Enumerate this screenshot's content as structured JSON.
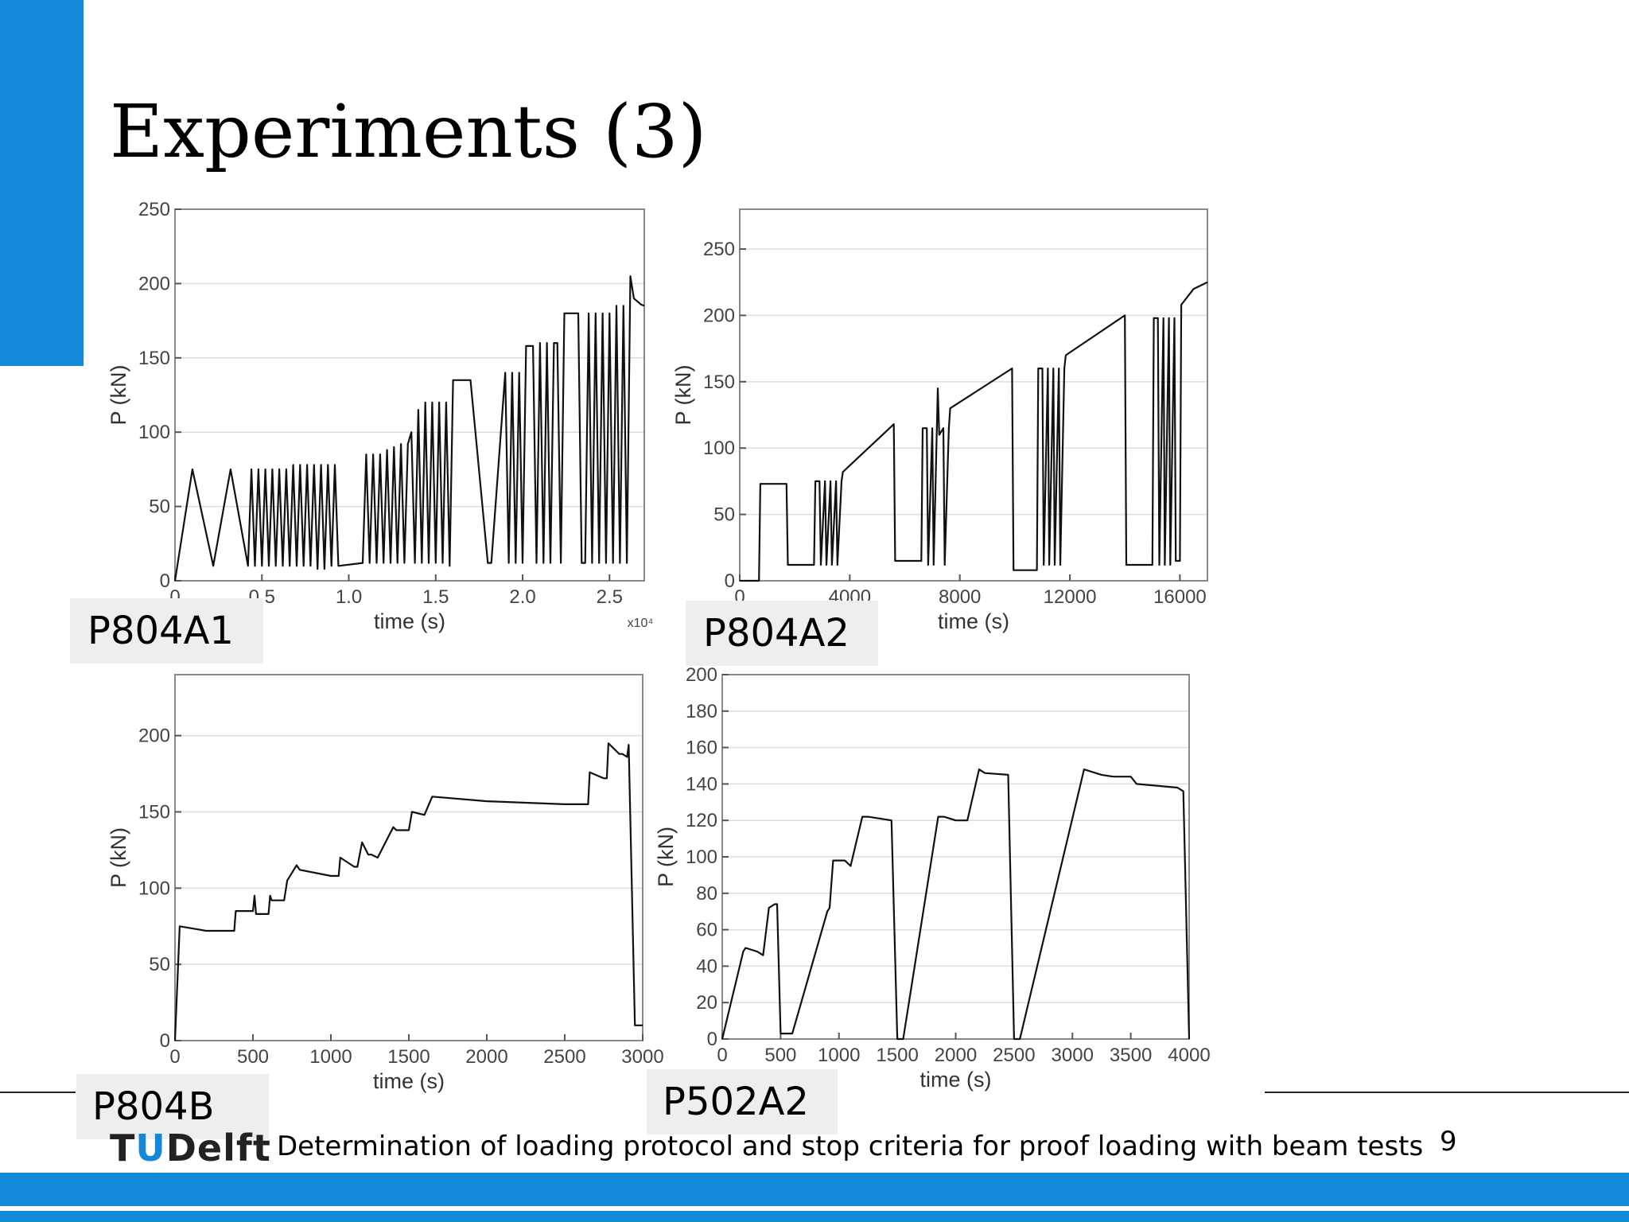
{
  "slide": {
    "title": "Experiments (3)",
    "footer_text": "Determination of loading protocol and stop criteria for proof loading with beam tests",
    "page_number": "9",
    "logo_text_prefix": "T",
    "logo_text_u": "U",
    "logo_text_suffix": "Delft",
    "colors": {
      "accent": "#1289d8",
      "plot_line": "#111111",
      "grid": "#dddddd"
    }
  },
  "chart_data": [
    {
      "type": "line",
      "label": "P804A1",
      "xlabel": "time (s)",
      "ylabel": "P (kN)",
      "x_multiplier_label": "x10⁴",
      "xlim": [
        0,
        2.7
      ],
      "ylim": [
        0,
        250
      ],
      "xticks": [
        0,
        0.5,
        1.0,
        1.5,
        2.0,
        2.5
      ],
      "xtick_labels": [
        "0",
        "0.5",
        "1.0",
        "1.5",
        "2.0",
        "2.5"
      ],
      "yticks": [
        0,
        50,
        100,
        150,
        200,
        250
      ],
      "grid": true,
      "series": [
        {
          "x": [
            0,
            0.1,
            0.22,
            0.32,
            0.42,
            0.44,
            0.46,
            0.48,
            0.5,
            0.52,
            0.54,
            0.56,
            0.58,
            0.6,
            0.62,
            0.64,
            0.66,
            0.68,
            0.7,
            0.72,
            0.74,
            0.76,
            0.78,
            0.8,
            0.82,
            0.84,
            0.86,
            0.88,
            0.9,
            0.92,
            0.94,
            1.08,
            1.1,
            1.12,
            1.14,
            1.16,
            1.18,
            1.2,
            1.22,
            1.24,
            1.26,
            1.28,
            1.3,
            1.32,
            1.34,
            1.36,
            1.38,
            1.4,
            1.42,
            1.44,
            1.46,
            1.48,
            1.5,
            1.52,
            1.54,
            1.56,
            1.58,
            1.6,
            1.62,
            1.64,
            1.66,
            1.7,
            1.8,
            1.82,
            1.9,
            1.92,
            1.94,
            1.96,
            1.98,
            2.0,
            2.02,
            2.04,
            2.06,
            2.08,
            2.1,
            2.12,
            2.14,
            2.16,
            2.18,
            2.2,
            2.22,
            2.24,
            2.26,
            2.28,
            2.3,
            2.32,
            2.34,
            2.36,
            2.38,
            2.4,
            2.42,
            2.44,
            2.46,
            2.48,
            2.5,
            2.52,
            2.54,
            2.56,
            2.58,
            2.6,
            2.62,
            2.64,
            2.66,
            2.68,
            2.7
          ],
          "y": [
            0,
            75,
            10,
            75,
            10,
            75,
            10,
            75,
            10,
            75,
            10,
            75,
            10,
            75,
            10,
            75,
            10,
            78,
            10,
            78,
            10,
            78,
            10,
            78,
            8,
            78,
            8,
            78,
            10,
            78,
            10,
            12,
            85,
            12,
            85,
            12,
            85,
            12,
            88,
            12,
            90,
            12,
            92,
            12,
            92,
            100,
            12,
            115,
            12,
            120,
            12,
            120,
            12,
            120,
            12,
            120,
            10,
            135,
            135,
            135,
            135,
            135,
            12,
            12,
            140,
            12,
            140,
            12,
            140,
            12,
            158,
            158,
            158,
            12,
            160,
            12,
            160,
            12,
            160,
            160,
            12,
            180,
            180,
            180,
            180,
            180,
            12,
            12,
            180,
            12,
            180,
            12,
            180,
            12,
            180,
            12,
            185,
            12,
            185,
            12,
            205,
            190,
            188,
            186,
            185
          ]
        }
      ]
    },
    {
      "type": "line",
      "label": "P804A2",
      "xlabel": "time (s)",
      "ylabel": "P (kN)",
      "xlim": [
        0,
        17000
      ],
      "ylim": [
        0,
        280
      ],
      "xticks": [
        0,
        4000,
        8000,
        12000,
        16000
      ],
      "xtick_labels": [
        "0",
        "4000",
        "8000",
        "12000",
        "16000"
      ],
      "yticks": [
        0,
        50,
        100,
        150,
        200,
        250
      ],
      "grid": true,
      "series": [
        {
          "x": [
            0,
            700,
            750,
            1700,
            1750,
            2700,
            2750,
            2900,
            2950,
            3100,
            3150,
            3300,
            3350,
            3500,
            3550,
            3700,
            3750,
            5600,
            5650,
            6600,
            6650,
            6800,
            6850,
            7000,
            7050,
            7200,
            7250,
            7400,
            7450,
            7600,
            7650,
            9900,
            9950,
            10800,
            10850,
            11000,
            11050,
            11200,
            11250,
            11400,
            11450,
            11600,
            11650,
            11800,
            11850,
            14000,
            14050,
            15000,
            15050,
            15200,
            15250,
            15400,
            15450,
            15600,
            15650,
            15800,
            15850,
            16000,
            16050,
            16500,
            17000
          ],
          "y": [
            0,
            0,
            73,
            73,
            12,
            12,
            75,
            75,
            12,
            75,
            12,
            75,
            12,
            75,
            12,
            75,
            82,
            118,
            15,
            15,
            115,
            115,
            12,
            115,
            12,
            145,
            110,
            115,
            12,
            115,
            130,
            160,
            8,
            8,
            160,
            160,
            12,
            160,
            12,
            160,
            12,
            160,
            12,
            160,
            170,
            200,
            12,
            12,
            198,
            198,
            12,
            198,
            12,
            198,
            12,
            198,
            15,
            15,
            208,
            220,
            225
          ]
        }
      ]
    },
    {
      "type": "line",
      "label": "P804B",
      "xlabel": "time (s)",
      "ylabel": "P (kN)",
      "xlim": [
        0,
        3000
      ],
      "ylim": [
        0,
        240
      ],
      "xticks": [
        0,
        500,
        1000,
        1500,
        2000,
        2500,
        3000
      ],
      "xtick_labels": [
        "0",
        "500",
        "1000",
        "1500",
        "2000",
        "2500",
        "3000"
      ],
      "yticks": [
        0,
        50,
        100,
        150,
        200
      ],
      "grid": true,
      "series": [
        {
          "x": [
            0,
            30,
            200,
            380,
            390,
            500,
            510,
            520,
            600,
            610,
            620,
            700,
            720,
            780,
            800,
            1000,
            1050,
            1060,
            1150,
            1170,
            1200,
            1240,
            1260,
            1300,
            1400,
            1420,
            1500,
            1520,
            1600,
            1650,
            2000,
            2500,
            2650,
            2660,
            2750,
            2770,
            2780,
            2850,
            2870,
            2900,
            2910,
            2950,
            3000
          ],
          "y": [
            0,
            75,
            72,
            72,
            85,
            85,
            95,
            83,
            83,
            95,
            92,
            92,
            105,
            115,
            112,
            108,
            108,
            120,
            114,
            114,
            130,
            122,
            122,
            120,
            140,
            138,
            138,
            150,
            148,
            160,
            157,
            155,
            155,
            176,
            172,
            172,
            195,
            188,
            188,
            186,
            194,
            10,
            10
          ]
        }
      ]
    },
    {
      "type": "line",
      "label": "P502A2",
      "xlabel": "time (s)",
      "ylabel": "P (kN)",
      "xlim": [
        0,
        4000
      ],
      "ylim": [
        0,
        200
      ],
      "xticks": [
        0,
        500,
        1000,
        1500,
        2000,
        2500,
        3000,
        3500,
        4000
      ],
      "xtick_labels": [
        "0",
        "500",
        "1000",
        "1500",
        "2000",
        "2500",
        "3000",
        "3500",
        "4000"
      ],
      "yticks": [
        0,
        20,
        40,
        60,
        80,
        100,
        120,
        140,
        160,
        180,
        200
      ],
      "grid": true,
      "series": [
        {
          "x": [
            0,
            180,
            200,
            300,
            350,
            400,
            450,
            470,
            500,
            600,
            900,
            920,
            950,
            1050,
            1100,
            1200,
            1250,
            1450,
            1500,
            1500,
            1550,
            1850,
            1900,
            2000,
            2100,
            2200,
            2250,
            2450,
            2500,
            2550,
            3100,
            3200,
            3250,
            3350,
            3500,
            3550,
            3900,
            3950,
            4000
          ],
          "y": [
            0,
            48,
            50,
            48,
            46,
            72,
            74,
            74,
            3,
            3,
            70,
            72,
            98,
            98,
            95,
            122,
            122,
            120,
            0,
            0,
            0,
            122,
            122,
            120,
            120,
            148,
            146,
            145,
            0,
            0,
            148,
            146,
            145,
            144,
            144,
            140,
            138,
            136,
            0
          ]
        }
      ]
    }
  ]
}
